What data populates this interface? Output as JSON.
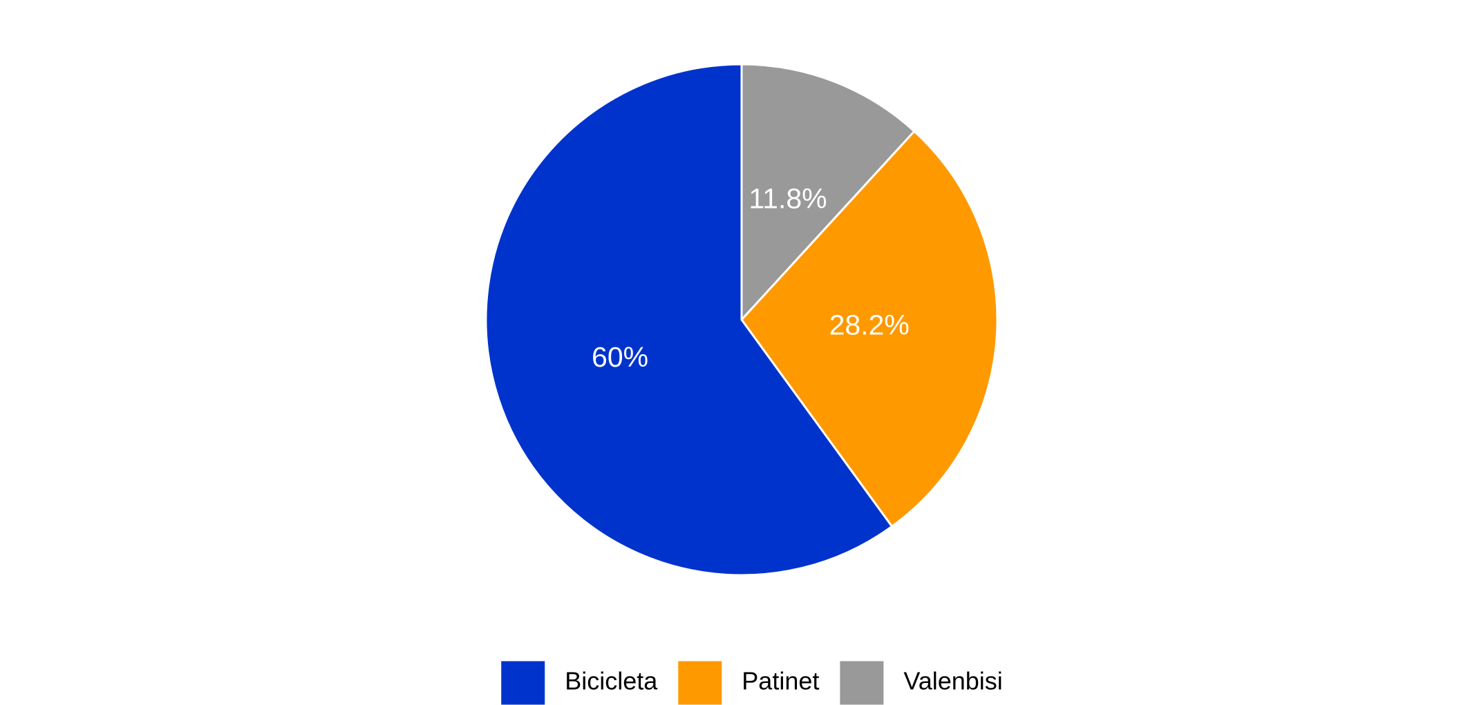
{
  "chart_data": {
    "type": "pie",
    "categories": [
      "Bicicleta",
      "Patinet",
      "Valenbisi"
    ],
    "values": [
      60,
      28.2,
      11.8
    ],
    "value_labels": [
      "60%",
      "28.2%",
      "11.8%"
    ],
    "colors": [
      "#0033cc",
      "#ff9900",
      "#999999"
    ],
    "legend": "bottom"
  }
}
